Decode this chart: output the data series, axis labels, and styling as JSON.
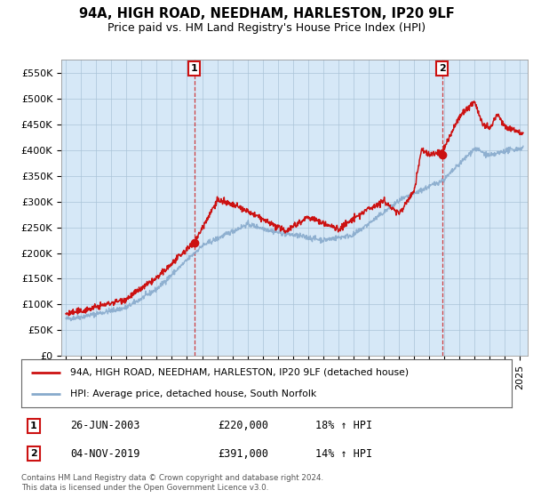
{
  "title": "94A, HIGH ROAD, NEEDHAM, HARLESTON, IP20 9LF",
  "subtitle": "Price paid vs. HM Land Registry's House Price Index (HPI)",
  "ylim": [
    0,
    575000
  ],
  "yticks": [
    0,
    50000,
    100000,
    150000,
    200000,
    250000,
    300000,
    350000,
    400000,
    450000,
    500000,
    550000
  ],
  "ytick_labels": [
    "£0",
    "£50K",
    "£100K",
    "£150K",
    "£200K",
    "£250K",
    "£300K",
    "£350K",
    "£400K",
    "£450K",
    "£500K",
    "£550K"
  ],
  "xlim_start": 1994.7,
  "xlim_end": 2025.5,
  "plot_background": "#d6e8f7",
  "red_line_color": "#cc1111",
  "blue_line_color": "#88aacc",
  "marker1_year": 2003.49,
  "marker1_value": 220000,
  "marker2_year": 2019.84,
  "marker2_value": 391000,
  "legend_red_label": "94A, HIGH ROAD, NEEDHAM, HARLESTON, IP20 9LF (detached house)",
  "legend_blue_label": "HPI: Average price, detached house, South Norfolk",
  "table_row1": [
    "1",
    "26-JUN-2003",
    "£220,000",
    "18% ↑ HPI"
  ],
  "table_row2": [
    "2",
    "04-NOV-2019",
    "£391,000",
    "14% ↑ HPI"
  ],
  "footer": "Contains HM Land Registry data © Crown copyright and database right 2024.\nThis data is licensed under the Open Government Licence v3.0.",
  "title_fontsize": 10.5,
  "subtitle_fontsize": 9,
  "tick_fontsize": 8,
  "grid_color": "#aac4d8"
}
